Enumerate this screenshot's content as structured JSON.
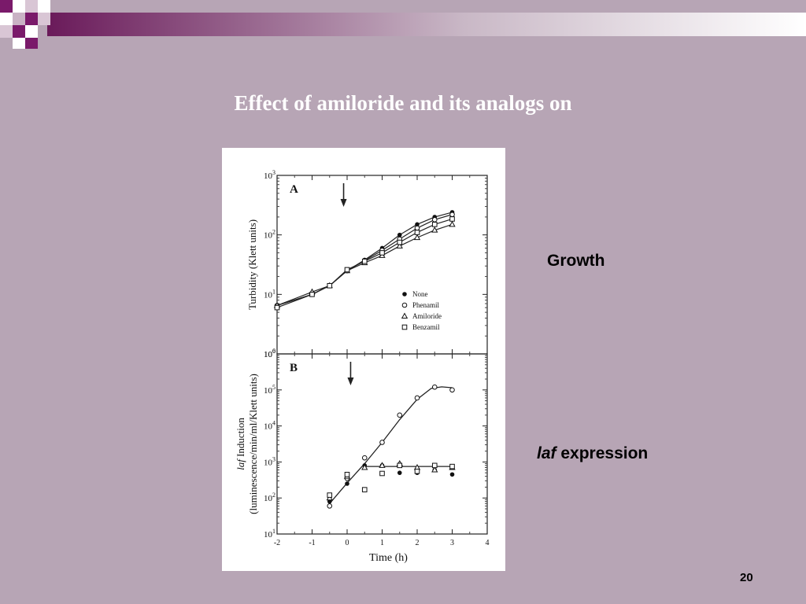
{
  "slide": {
    "title": "Effect of amiloride and its analogs on",
    "growth_label": "Growth",
    "laf_italic": "laf",
    "laf_rest": " expression",
    "page_number": "20"
  },
  "colors": {
    "background": "#b7a5b5",
    "accent": "#6a1a5a",
    "figure_bg": "#ffffff"
  },
  "chart_data": [
    {
      "type": "scatter",
      "panel_label": "A",
      "ylabel": "Turbidity (Klett units)",
      "xlabel": "",
      "y_scale": "log",
      "ylim": [
        1,
        1000
      ],
      "xlim": [
        -2,
        4
      ],
      "x_ticks": [
        "-2",
        "-1",
        "0",
        "1",
        "2",
        "3",
        "4"
      ],
      "y_ticks": [
        "10^0",
        "10^1",
        "10^2",
        "10^3"
      ],
      "arrow_x": -0.1,
      "legend": [
        "None",
        "Phenamil",
        "Amiloride",
        "Benzamil"
      ],
      "series": [
        {
          "name": "None",
          "marker": "filled-circle",
          "x": [
            -2,
            -1,
            -0.5,
            0,
            0.5,
            1,
            1.5,
            2,
            2.5,
            3
          ],
          "y": [
            6.5,
            10,
            14,
            25,
            38,
            60,
            100,
            150,
            200,
            240
          ]
        },
        {
          "name": "Phenamil",
          "marker": "open-circle",
          "x": [
            -2,
            -1,
            -0.5,
            0,
            0.5,
            1,
            1.5,
            2,
            2.5,
            3
          ],
          "y": [
            6.5,
            10,
            14,
            25,
            37,
            55,
            85,
            130,
            180,
            220
          ]
        },
        {
          "name": "Amiloride",
          "marker": "open-triangle",
          "x": [
            -2,
            -1,
            -0.5,
            0,
            0.5,
            1,
            1.5,
            2,
            2.5,
            3
          ],
          "y": [
            6.5,
            11,
            14,
            25,
            34,
            45,
            65,
            90,
            120,
            150
          ]
        },
        {
          "name": "Benzamil",
          "marker": "open-square",
          "x": [
            -2,
            -1,
            -0.5,
            0,
            0.5,
            1,
            1.5,
            2,
            2.5,
            3
          ],
          "y": [
            6,
            10,
            14,
            26,
            36,
            50,
            75,
            110,
            150,
            185
          ]
        }
      ]
    },
    {
      "type": "scatter",
      "panel_label": "B",
      "ylabel_italic": "laf",
      "ylabel": " Induction",
      "ylabel2": "(luminescence/min/ml/Klett units)",
      "xlabel": "Time (h)",
      "y_scale": "log",
      "ylim": [
        10,
        1000000
      ],
      "xlim": [
        -2,
        4
      ],
      "x_ticks": [
        "-2",
        "-1",
        "0",
        "1",
        "2",
        "3",
        "4"
      ],
      "y_ticks": [
        "10^1",
        "10^2",
        "10^3",
        "10^4",
        "10^5",
        "10^6"
      ],
      "arrow_x": 0.1,
      "series": [
        {
          "name": "None",
          "marker": "filled-circle",
          "x": [
            -0.5,
            0,
            0.5,
            1,
            1.5,
            2,
            2.5,
            3
          ],
          "y": [
            80,
            250,
            800,
            800,
            500,
            500,
            600,
            450
          ]
        },
        {
          "name": "Phenamil",
          "marker": "open-circle",
          "x": [
            -0.5,
            0,
            0.5,
            1,
            1.5,
            2,
            2.5,
            3
          ],
          "y": [
            60,
            350,
            1300,
            3500,
            20000,
            60000,
            120000,
            100000
          ]
        },
        {
          "name": "Amiloride",
          "marker": "open-triangle",
          "x": [
            -0.5,
            0,
            0.5,
            1,
            1.5,
            2,
            2.5,
            3
          ],
          "y": [
            100,
            400,
            700,
            800,
            900,
            700,
            600,
            700
          ]
        },
        {
          "name": "Benzamil",
          "marker": "open-square",
          "x": [
            -0.5,
            0,
            0.5,
            1,
            1.5,
            2,
            2.5,
            3
          ],
          "y": [
            120,
            450,
            170,
            480,
            800,
            550,
            800,
            750
          ]
        }
      ],
      "fit_lines": [
        {
          "x": [
            -0.5,
            0,
            0.5,
            1,
            1.5,
            2,
            2.4,
            2.7,
            3
          ],
          "y": [
            70,
            260,
            900,
            3500,
            15000,
            55000,
            110000,
            122000,
            115000
          ]
        },
        {
          "x": [
            0.5,
            3
          ],
          "y": [
            750,
            750
          ]
        }
      ]
    }
  ]
}
